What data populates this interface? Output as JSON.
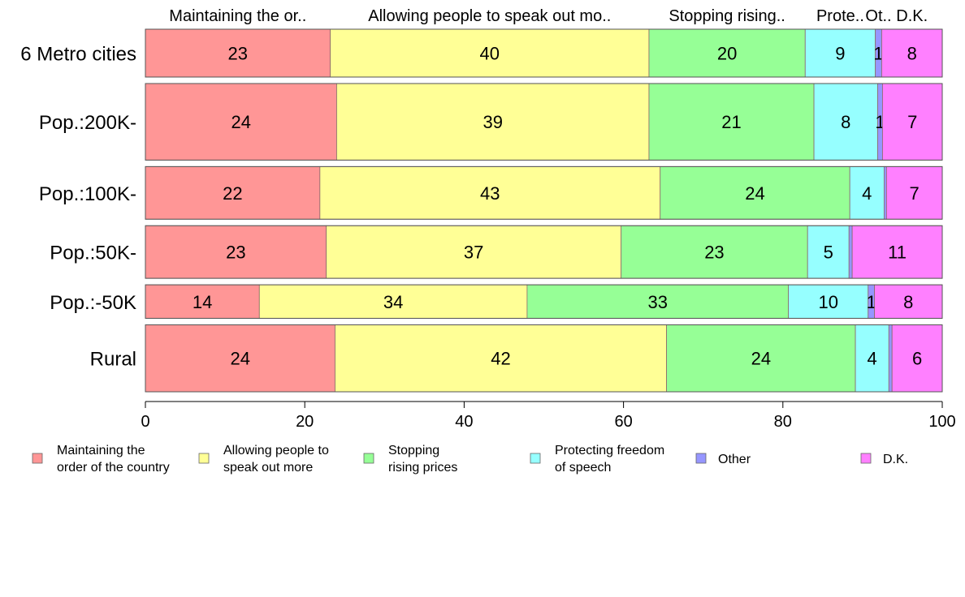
{
  "chart_data": {
    "type": "bar",
    "orientation": "horizontal",
    "stacked": true,
    "categories": [
      "6 Metro cities",
      "Pop.:200K-",
      "Pop.:100K-",
      "Pop.:50K-",
      "Pop.:-50K",
      "Rural"
    ],
    "series": [
      {
        "name": "Maintaining the order of the country",
        "legend_lines": [
          "Maintaining the",
          "order of the country"
        ],
        "top_label": "Maintaining the or..",
        "color": "#FF9696",
        "values": [
          23.2,
          24.0,
          21.9,
          22.7,
          14.3,
          23.8
        ],
        "labels": [
          "23",
          "24",
          "22",
          "23",
          "14",
          "24"
        ]
      },
      {
        "name": "Allowing people to speak out more",
        "legend_lines": [
          "Allowing people to",
          "speak out more"
        ],
        "top_label": "Allowing people to speak out mo..",
        "color": "#FFFF96",
        "values": [
          40.0,
          39.2,
          42.7,
          37.0,
          33.6,
          41.6
        ],
        "labels": [
          "40",
          "39",
          "43",
          "37",
          "34",
          "42"
        ]
      },
      {
        "name": "Stopping rising prices",
        "legend_lines": [
          "Stopping",
          "rising prices"
        ],
        "top_label": "Stopping rising..",
        "color": "#96FF96",
        "values": [
          19.6,
          20.7,
          23.8,
          23.4,
          32.8,
          23.7
        ],
        "labels": [
          "20",
          "21",
          "24",
          "23",
          "33",
          "24"
        ]
      },
      {
        "name": "Protecting freedom of speech",
        "legend_lines": [
          "Protecting freedom",
          "of speech"
        ],
        "top_label": "Prote..",
        "color": "#96FFFF",
        "values": [
          8.8,
          8.0,
          4.3,
          5.2,
          10.0,
          4.2
        ],
        "labels": [
          "9",
          "8",
          "4",
          "5",
          "10",
          "4"
        ]
      },
      {
        "name": "Other",
        "legend_lines": [
          "Other"
        ],
        "top_label": "Ot..",
        "color": "#9696FF",
        "values": [
          0.8,
          0.6,
          0.3,
          0.4,
          0.8,
          0.4
        ],
        "labels": [
          "1",
          "1",
          "",
          "",
          "1",
          ""
        ]
      },
      {
        "name": "D.K.",
        "legend_lines": [
          "D.K."
        ],
        "top_label": "D.K.",
        "color": "#FF80FF",
        "values": [
          7.6,
          7.5,
          7.0,
          11.3,
          8.5,
          6.3
        ],
        "labels": [
          "8",
          "7",
          "7",
          "11",
          "8",
          "6"
        ]
      }
    ],
    "xlim": [
      0,
      100
    ],
    "xticks": [
      0,
      20,
      40,
      60,
      80,
      100
    ],
    "row_weights": [
      1.0,
      1.6,
      1.1,
      1.1,
      0.7,
      1.4
    ],
    "grid": false,
    "legend_position": "bottom"
  }
}
